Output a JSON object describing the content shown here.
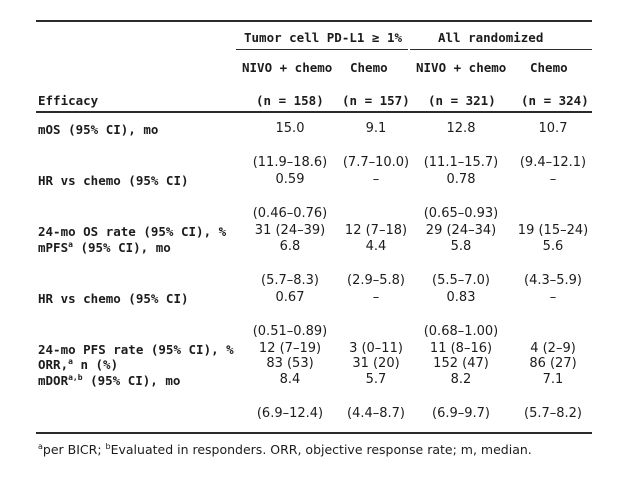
{
  "header": {
    "group1": "Tumor cell PD-L1 ≥ 1%",
    "group2": "All randomized",
    "col1": "NIVO + chemo",
    "col2": "Chemo",
    "col3": "NIVO + chemo",
    "col4": "Chemo",
    "efficacy": "Efficacy",
    "n1": "(n = 158)",
    "n2": "(n = 157)",
    "n3": "(n = 321)",
    "n4": "(n = 324)"
  },
  "rows": {
    "mos_label": "mOS (95% CI), mo",
    "mos": [
      "15.0",
      "9.1",
      "12.8",
      "10.7"
    ],
    "mos_ci": [
      "(11.9–18.6)",
      "(7.7–10.0)",
      "(11.1–15.7)",
      "(9.4–12.1)"
    ],
    "hr_os_label": "HR vs chemo (95% CI)",
    "hr_os": [
      "0.59",
      "–",
      "0.78",
      "–"
    ],
    "hr_os_ci": [
      "(0.46–0.76)",
      "",
      "(0.65–0.93)",
      ""
    ],
    "os24_label": "24-mo OS rate (95% CI), %",
    "os24": [
      "31 (24–39)",
      "12 (7–18)",
      "29 (24–34)",
      "19 (15–24)"
    ],
    "mpfs_label": "mPFS",
    "mpfs_sup": "a",
    "mpfs_label_tail": " (95% CI), mo",
    "mpfs": [
      "6.8",
      "4.4",
      "5.8",
      "5.6"
    ],
    "mpfs_ci": [
      "(5.7–8.3)",
      "(2.9–5.8)",
      "(5.5–7.0)",
      "(4.3–5.9)"
    ],
    "hr_pfs_label": "HR vs chemo (95% CI)",
    "hr_pfs": [
      "0.67",
      "–",
      "0.83",
      "–"
    ],
    "hr_pfs_ci": [
      "(0.51–0.89)",
      "",
      "(0.68–1.00)",
      ""
    ],
    "pfs24_label": "24-mo PFS rate (95% CI), %",
    "pfs24": [
      "12 (7–19)",
      "3 (0–11)",
      "11 (8–16)",
      "4 (2–9)"
    ],
    "orr_label": "ORR,",
    "orr_sup": "a",
    "orr_label_tail": " n (%)",
    "orr": [
      "83 (53)",
      "31 (20)",
      "152 (47)",
      "86 (27)"
    ],
    "mdor_label": "mDOR",
    "mdor_sup": "a,b",
    "mdor_label_tail": " (95% CI), mo",
    "mdor": [
      "8.4",
      "5.7",
      "8.2",
      "7.1"
    ],
    "mdor_ci": [
      "(6.9–12.4)",
      "(4.4–8.7)",
      "(6.9–9.7)",
      "(5.7–8.2)"
    ]
  },
  "footnote": {
    "sup_a": "a",
    "text_a": "per BICR; ",
    "sup_b": "b",
    "text_b": "Evaluated in responders. ORR, objective response rate; m, median."
  }
}
